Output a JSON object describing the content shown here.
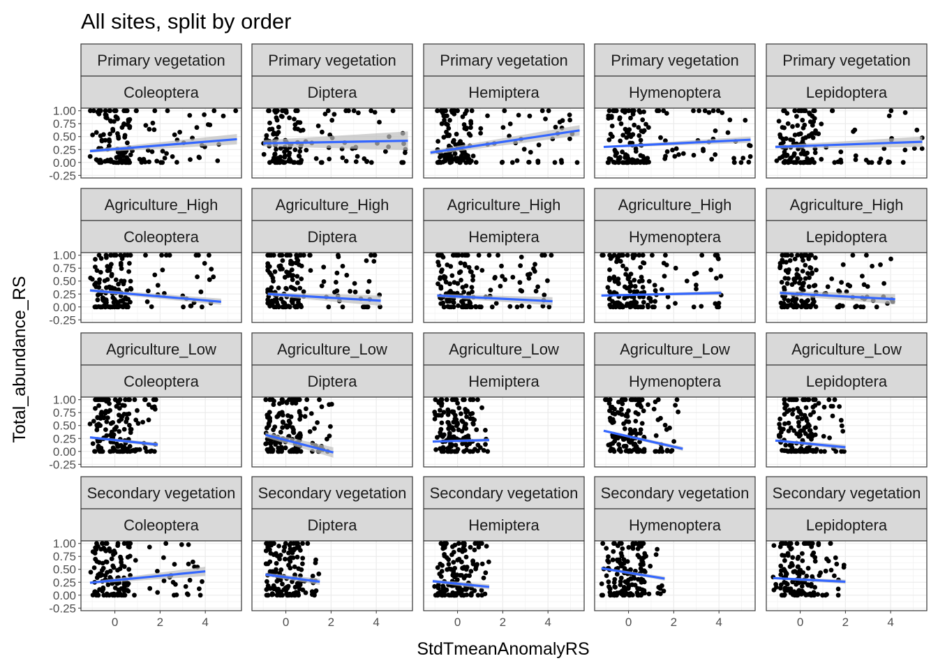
{
  "chart_data": {
    "type": "scatter",
    "title": "All sites, split by order",
    "xlabel": "StdTmeanAnomalyRS",
    "ylabel": "Total_abundance_RS",
    "xlim": [
      -1.5,
      5.6
    ],
    "ylim": [
      -0.3,
      1.05
    ],
    "x_ticks": [
      0,
      2,
      4
    ],
    "y_ticks": [
      -0.25,
      0.0,
      0.25,
      0.5,
      0.75,
      1.0
    ],
    "y_tick_labels": [
      "-0.25",
      "0.00",
      "0.25",
      "0.50",
      "0.75",
      "1.00"
    ],
    "grid": true,
    "facet_rows": [
      "Primary vegetation",
      "Agriculture_High",
      "Agriculture_Low",
      "Secondary vegetation"
    ],
    "facet_cols": [
      "Coleoptera",
      "Diptera",
      "Hemiptera",
      "Hymenoptera",
      "Lepidoptera"
    ],
    "colors": {
      "points": "#000000",
      "trend": "#3366FF",
      "ribbon": "#BDBDBD",
      "strip": "#D9D9D9"
    },
    "panels": [
      {
        "row": "Primary vegetation",
        "col": "Coleoptera",
        "x_range": [
          -1.1,
          5.4
        ],
        "trend": [
          [
            -1.1,
            0.22
          ],
          [
            5.4,
            0.45
          ]
        ],
        "se": [
          [
            0.03,
            0.03
          ],
          [
            0.02,
            0.1
          ]
        ]
      },
      {
        "row": "Primary vegetation",
        "col": "Diptera",
        "x_range": [
          -1.0,
          5.4
        ],
        "trend": [
          [
            -1.0,
            0.37
          ],
          [
            5.4,
            0.42
          ]
        ],
        "se": [
          [
            0.06,
            0.06
          ],
          [
            0.05,
            0.18
          ]
        ]
      },
      {
        "row": "Primary vegetation",
        "col": "Hemiptera",
        "x_range": [
          -1.2,
          5.4
        ],
        "trend": [
          [
            -1.2,
            0.19
          ],
          [
            5.4,
            0.62
          ]
        ],
        "se": [
          [
            0.04,
            0.04
          ],
          [
            0.04,
            0.1
          ]
        ]
      },
      {
        "row": "Primary vegetation",
        "col": "Hymenoptera",
        "x_range": [
          -1.1,
          5.4
        ],
        "trend": [
          [
            -1.1,
            0.3
          ],
          [
            5.4,
            0.44
          ]
        ],
        "se": [
          [
            0.02,
            0.02
          ],
          [
            0.02,
            0.06
          ]
        ]
      },
      {
        "row": "Primary vegetation",
        "col": "Lepidoptera",
        "x_range": [
          -1.1,
          5.4
        ],
        "trend": [
          [
            -1.1,
            0.3
          ],
          [
            5.4,
            0.4
          ]
        ],
        "se": [
          [
            0.03,
            0.03
          ],
          [
            0.03,
            0.1
          ]
        ]
      },
      {
        "row": "Agriculture_High",
        "col": "Coleoptera",
        "x_range": [
          -1.1,
          4.7
        ],
        "trend": [
          [
            -1.1,
            0.32
          ],
          [
            4.7,
            0.1
          ]
        ],
        "se": [
          [
            0.03,
            0.03
          ],
          [
            0.02,
            0.06
          ]
        ]
      },
      {
        "row": "Agriculture_High",
        "col": "Diptera",
        "x_range": [
          -0.8,
          4.2
        ],
        "trend": [
          [
            -0.8,
            0.25
          ],
          [
            4.2,
            0.12
          ]
        ],
        "se": [
          [
            0.03,
            0.03
          ],
          [
            0.03,
            0.1
          ]
        ]
      },
      {
        "row": "Agriculture_High",
        "col": "Hemiptera",
        "x_range": [
          -0.9,
          4.2
        ],
        "trend": [
          [
            -0.9,
            0.22
          ],
          [
            4.2,
            0.11
          ]
        ],
        "se": [
          [
            0.03,
            0.03
          ],
          [
            0.03,
            0.08
          ]
        ]
      },
      {
        "row": "Agriculture_High",
        "col": "Hymenoptera",
        "x_range": [
          -1.2,
          4.1
        ],
        "trend": [
          [
            -1.2,
            0.22
          ],
          [
            4.1,
            0.27
          ]
        ],
        "se": [
          [
            0.01,
            0.01
          ],
          [
            0.01,
            0.04
          ]
        ]
      },
      {
        "row": "Agriculture_High",
        "col": "Lepidoptera",
        "x_range": [
          -0.9,
          4.2
        ],
        "trend": [
          [
            -0.9,
            0.27
          ],
          [
            4.2,
            0.15
          ]
        ],
        "se": [
          [
            0.04,
            0.04
          ],
          [
            0.03,
            0.1
          ]
        ]
      },
      {
        "row": "Agriculture_Low",
        "col": "Coleoptera",
        "x_range": [
          -1.1,
          1.9
        ],
        "trend": [
          [
            -1.1,
            0.27
          ],
          [
            1.9,
            0.13
          ]
        ],
        "se": [
          [
            0.02,
            0.02
          ],
          [
            0.02,
            0.04
          ]
        ]
      },
      {
        "row": "Agriculture_Low",
        "col": "Diptera",
        "x_range": [
          -0.9,
          2.1
        ],
        "trend": [
          [
            -0.9,
            0.32
          ],
          [
            2.1,
            -0.02
          ]
        ],
        "se": [
          [
            0.05,
            0.05
          ],
          [
            0.04,
            0.1
          ]
        ]
      },
      {
        "row": "Agriculture_Low",
        "col": "Hemiptera",
        "x_range": [
          -1.1,
          1.4
        ],
        "trend": [
          [
            -1.1,
            0.19
          ],
          [
            1.4,
            0.22
          ]
        ],
        "se": [
          [
            0.02,
            0.02
          ],
          [
            0.02,
            0.03
          ]
        ]
      },
      {
        "row": "Agriculture_Low",
        "col": "Hymenoptera",
        "x_range": [
          -1.1,
          2.4
        ],
        "trend": [
          [
            -1.1,
            0.4
          ],
          [
            2.4,
            0.05
          ]
        ],
        "se": [
          [
            0.02,
            0.02
          ],
          [
            0.02,
            0.04
          ]
        ]
      },
      {
        "row": "Agriculture_Low",
        "col": "Lepidoptera",
        "x_range": [
          -1.1,
          2.0
        ],
        "trend": [
          [
            -1.1,
            0.21
          ],
          [
            2.0,
            0.08
          ]
        ],
        "se": [
          [
            0.02,
            0.02
          ],
          [
            0.02,
            0.05
          ]
        ]
      },
      {
        "row": "Secondary vegetation",
        "col": "Coleoptera",
        "x_range": [
          -1.1,
          4.0
        ],
        "trend": [
          [
            -1.1,
            0.24
          ],
          [
            4.0,
            0.46
          ]
        ],
        "se": [
          [
            0.02,
            0.02
          ],
          [
            0.02,
            0.09
          ]
        ]
      },
      {
        "row": "Secondary vegetation",
        "col": "Diptera",
        "x_range": [
          -0.9,
          1.5
        ],
        "trend": [
          [
            -0.9,
            0.4
          ],
          [
            1.5,
            0.26
          ]
        ],
        "se": [
          [
            0.03,
            0.03
          ],
          [
            0.03,
            0.06
          ]
        ]
      },
      {
        "row": "Secondary vegetation",
        "col": "Hemiptera",
        "x_range": [
          -1.1,
          1.4
        ],
        "trend": [
          [
            -1.1,
            0.27
          ],
          [
            1.4,
            0.16
          ]
        ],
        "se": [
          [
            0.03,
            0.03
          ],
          [
            0.03,
            0.05
          ]
        ]
      },
      {
        "row": "Secondary vegetation",
        "col": "Hymenoptera",
        "x_range": [
          -1.2,
          1.6
        ],
        "trend": [
          [
            -1.2,
            0.52
          ],
          [
            1.6,
            0.32
          ]
        ],
        "se": [
          [
            0.02,
            0.02
          ],
          [
            0.02,
            0.04
          ]
        ]
      },
      {
        "row": "Secondary vegetation",
        "col": "Lepidoptera",
        "x_range": [
          -1.2,
          2.0
        ],
        "trend": [
          [
            -1.2,
            0.33
          ],
          [
            2.0,
            0.26
          ]
        ],
        "se": [
          [
            0.02,
            0.02
          ],
          [
            0.02,
            0.04
          ]
        ]
      }
    ]
  }
}
